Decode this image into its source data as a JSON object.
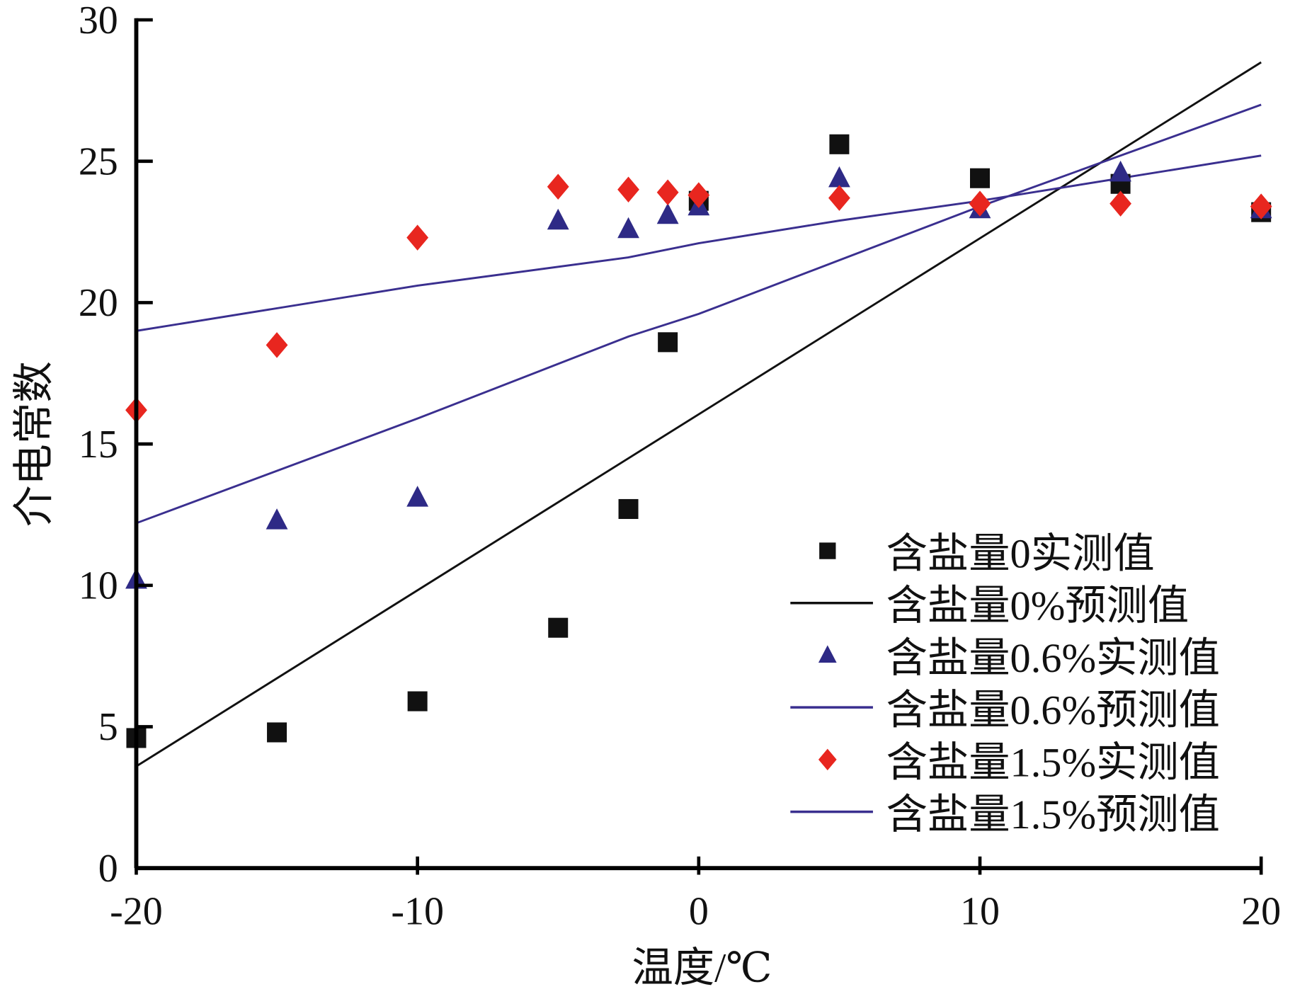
{
  "chart_data": {
    "type": "scatter",
    "title": "",
    "xlabel": "温度/℃",
    "ylabel": "介电常数",
    "xlim": [
      -20,
      20
    ],
    "ylim": [
      0,
      30
    ],
    "xticks": [
      "-20",
      "-10",
      "0",
      "10",
      "20"
    ],
    "yticks": [
      "0",
      "5",
      "10",
      "15",
      "20",
      "25",
      "30"
    ],
    "grid": false,
    "legend_position": "bottom-right",
    "series": [
      {
        "name": "含盐量0实测值",
        "kind": "scatter",
        "marker": "square",
        "color": "#111111",
        "x": [
          -20,
          -15,
          -10,
          -5,
          -2.5,
          -1.1,
          0,
          5,
          10,
          15,
          20
        ],
        "y": [
          4.6,
          4.8,
          5.9,
          8.5,
          12.7,
          18.6,
          23.6,
          25.6,
          24.4,
          24.2,
          23.2
        ]
      },
      {
        "name": "含盐量0%预测值",
        "kind": "line",
        "color": "#111111",
        "x": [
          -20,
          20
        ],
        "y": [
          3.6,
          28.5
        ]
      },
      {
        "name": "含盐量0.6%实测值",
        "kind": "scatter",
        "marker": "triangle",
        "color": "#2e2a86",
        "x": [
          -20,
          -15,
          -10,
          -5,
          -2.5,
          -1.1,
          0,
          5,
          10,
          15,
          20
        ],
        "y": [
          10.2,
          12.3,
          13.1,
          22.9,
          22.6,
          23.1,
          23.4,
          24.4,
          23.3,
          24.6,
          23.3
        ]
      },
      {
        "name": "含盐量0.6%预测值",
        "kind": "line",
        "color": "#3a2f8f",
        "x": [
          -20,
          -10,
          -2.5,
          0,
          5,
          10,
          15,
          20
        ],
        "y": [
          12.2,
          15.9,
          18.8,
          19.6,
          21.5,
          23.4,
          25.2,
          27.0
        ]
      },
      {
        "name": "含盐量1.5%实测值",
        "kind": "scatter",
        "marker": "diamond",
        "color": "#e8261f",
        "x": [
          -20,
          -15,
          -10,
          -5,
          -2.5,
          -1.1,
          0,
          5,
          10,
          15,
          20
        ],
        "y": [
          16.2,
          18.5,
          22.3,
          24.1,
          24.0,
          23.9,
          23.8,
          23.7,
          23.5,
          23.5,
          23.4
        ]
      },
      {
        "name": "含盐量1.5%预测值",
        "kind": "line",
        "color": "#3a2f8f",
        "x": [
          -20,
          -10,
          -2.5,
          0,
          5,
          10,
          15,
          20
        ],
        "y": [
          19.0,
          20.6,
          21.6,
          22.1,
          22.9,
          23.6,
          24.4,
          25.2
        ]
      }
    ]
  }
}
